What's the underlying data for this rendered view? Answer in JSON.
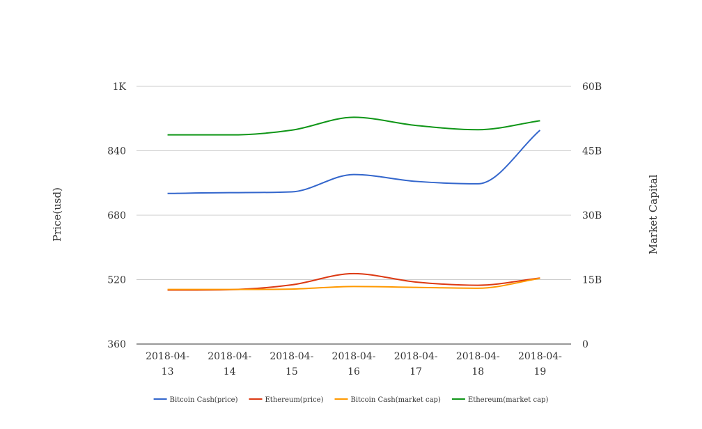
{
  "chart_data": {
    "type": "line",
    "title": "",
    "categories": [
      "2018-04-13",
      "2018-04-14",
      "2018-04-15",
      "2018-04-16",
      "2018-04-17",
      "2018-04-18",
      "2018-04-19"
    ],
    "category_label_lines": [
      [
        "2018-04-",
        "13"
      ],
      [
        "2018-04-",
        "14"
      ],
      [
        "2018-04-",
        "15"
      ],
      [
        "2018-04-",
        "16"
      ],
      [
        "2018-04-",
        "17"
      ],
      [
        "2018-04-",
        "18"
      ],
      [
        "2018-04-",
        "19"
      ]
    ],
    "left_axis": {
      "label": "Price(usd)",
      "min": 360,
      "max": 1000,
      "ticks": [
        360,
        520,
        680,
        840,
        1000
      ],
      "tick_labels": [
        "360",
        "520",
        "680",
        "840",
        "1K"
      ]
    },
    "right_axis": {
      "label": "Market Capital",
      "min": 0,
      "max": 60000000000,
      "ticks": [
        0,
        15000000000,
        30000000000,
        45000000000,
        60000000000
      ],
      "tick_labels": [
        "0",
        "15B",
        "30B",
        "45B",
        "60B"
      ]
    },
    "grid": true,
    "legend_position": "bottom",
    "series": [
      {
        "name": "Bitcoin Cash(price)",
        "axis": "left",
        "color": "#3366cc",
        "values": [
          734,
          736,
          738,
          781,
          764,
          758,
          891
        ]
      },
      {
        "name": "Ethereum(price)",
        "axis": "left",
        "color": "#dc3912",
        "values": [
          494,
          495,
          507,
          535,
          514,
          506,
          524
        ]
      },
      {
        "name": "Bitcoin Cash(market cap)",
        "axis": "right",
        "color": "#ff9900",
        "values": [
          12700000000,
          12700000000,
          12800000000,
          13400000000,
          13200000000,
          13000000000,
          15300000000
        ]
      },
      {
        "name": "Ethereum(market cap)",
        "axis": "right",
        "color": "#109618",
        "values": [
          48700000000,
          48700000000,
          49800000000,
          52800000000,
          50900000000,
          49900000000,
          52000000000
        ]
      }
    ]
  }
}
